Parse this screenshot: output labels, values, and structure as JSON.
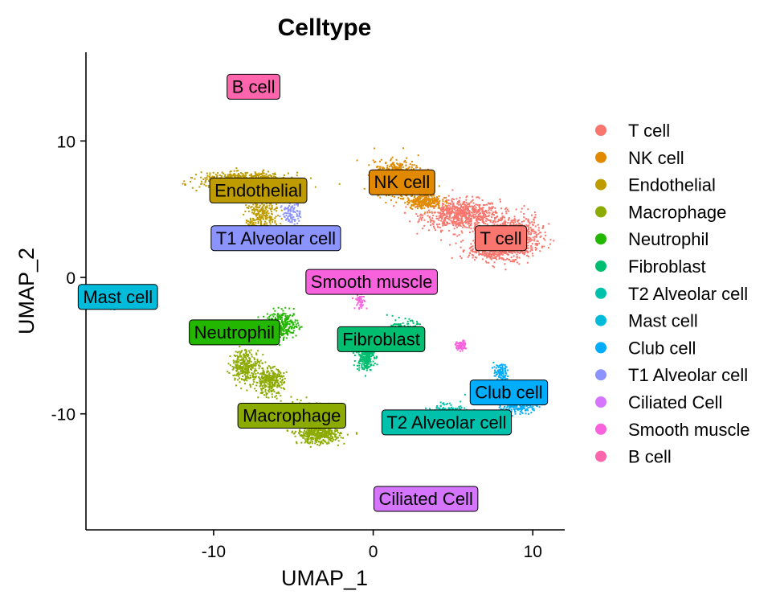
{
  "chart_data": {
    "type": "scatter",
    "title": "Celltype",
    "xlabel": "UMAP_1",
    "ylabel": "UMAP_2",
    "xlim": [
      -18,
      12
    ],
    "ylim": [
      -18.5,
      16.5
    ],
    "xticks": [
      -10,
      0,
      10
    ],
    "yticks": [
      10,
      0,
      -10
    ],
    "grid": false,
    "legend_position": "right",
    "clusters": [
      {
        "name": "T cell",
        "color": "#F8766D",
        "blobs": [
          {
            "cx": 5.5,
            "cy": 4.6,
            "rx": 2.2,
            "ry": 1.0,
            "n": 700
          },
          {
            "cx": 8.7,
            "cy": 3.0,
            "rx": 1.6,
            "ry": 1.4,
            "n": 700
          },
          {
            "cx": 7.5,
            "cy": 2.0,
            "rx": 1.4,
            "ry": 0.7,
            "n": 300
          }
        ],
        "label_x": 8.0,
        "label_y": 2.9
      },
      {
        "name": "NK cell",
        "color": "#E18A00",
        "blobs": [
          {
            "cx": 1.6,
            "cy": 7.3,
            "rx": 1.4,
            "ry": 1.1,
            "n": 700
          },
          {
            "cx": 3.2,
            "cy": 5.6,
            "rx": 1.0,
            "ry": 0.5,
            "n": 250
          }
        ],
        "label_x": 1.8,
        "label_y": 7.0
      },
      {
        "name": "Endothelial",
        "color": "#BE9C00",
        "blobs": [
          {
            "cx": -8.0,
            "cy": 7.1,
            "rx": 2.5,
            "ry": 0.5,
            "n": 700
          },
          {
            "cx": -7.0,
            "cy": 4.5,
            "rx": 0.9,
            "ry": 1.5,
            "n": 300
          }
        ],
        "label_x": -7.2,
        "label_y": 6.4
      },
      {
        "name": "Macrophage",
        "color": "#8CAB00",
        "blobs": [
          {
            "cx": -8.0,
            "cy": -6.5,
            "rx": 0.8,
            "ry": 1.1,
            "n": 300
          },
          {
            "cx": -6.5,
            "cy": -7.6,
            "rx": 0.8,
            "ry": 0.9,
            "n": 300
          },
          {
            "cx": -4.4,
            "cy": -10.0,
            "rx": 1.2,
            "ry": 0.8,
            "n": 300
          },
          {
            "cx": -3.4,
            "cy": -11.5,
            "rx": 1.2,
            "ry": 0.6,
            "n": 450
          }
        ],
        "label_x": -5.1,
        "label_y": -10.1
      },
      {
        "name": "Neutrophil",
        "color": "#24B700",
        "blobs": [
          {
            "cx": -5.7,
            "cy": -3.5,
            "rx": 0.9,
            "ry": 0.9,
            "n": 300
          }
        ],
        "label_x": -8.7,
        "label_y": -4.0
      },
      {
        "name": "Fibroblast",
        "color": "#00BE70",
        "blobs": [
          {
            "cx": -0.5,
            "cy": -5.8,
            "rx": 0.5,
            "ry": 0.9,
            "n": 250
          },
          {
            "cx": 1.9,
            "cy": -3.8,
            "rx": 0.8,
            "ry": 0.6,
            "n": 150
          }
        ],
        "label_x": 0.5,
        "label_y": -4.5
      },
      {
        "name": "T2 Alveolar cell",
        "color": "#00C1AB",
        "blobs": [
          {
            "cx": 4.5,
            "cy": -10.0,
            "rx": 1.2,
            "ry": 0.6,
            "n": 300
          }
        ],
        "label_x": 4.6,
        "label_y": -10.6
      },
      {
        "name": "Mast cell",
        "color": "#00BBDA",
        "blobs": [
          {
            "cx": -16.3,
            "cy": -1.8,
            "rx": 0.3,
            "ry": 0.5,
            "n": 60
          }
        ],
        "label_x": -16.0,
        "label_y": -1.4
      },
      {
        "name": "Club cell",
        "color": "#00ACFC",
        "blobs": [
          {
            "cx": 8.0,
            "cy": -7.0,
            "rx": 0.4,
            "ry": 0.6,
            "n": 100
          },
          {
            "cx": 9.2,
            "cy": -9.3,
            "rx": 1.0,
            "ry": 0.6,
            "n": 200
          }
        ],
        "label_x": 8.5,
        "label_y": -8.4
      },
      {
        "name": "T1 Alveolar cell",
        "color": "#8B93FF",
        "blobs": [
          {
            "cx": -5.1,
            "cy": 4.8,
            "rx": 0.5,
            "ry": 0.9,
            "n": 100
          }
        ],
        "label_x": -6.1,
        "label_y": 2.9
      },
      {
        "name": "Ciliated Cell",
        "color": "#D575FE",
        "blobs": [],
        "label_x": 3.3,
        "label_y": -16.2
      },
      {
        "name": "Smooth muscle",
        "color": "#F962DD",
        "blobs": [
          {
            "cx": -0.8,
            "cy": -1.6,
            "rx": 0.3,
            "ry": 0.7,
            "n": 60
          },
          {
            "cx": 5.5,
            "cy": -5.0,
            "rx": 0.3,
            "ry": 0.3,
            "n": 80
          }
        ],
        "label_x": -0.1,
        "label_y": -0.3
      },
      {
        "name": "B cell",
        "color": "#FF65AC",
        "blobs": [],
        "label_x": -7.5,
        "label_y": 14.0
      }
    ]
  }
}
